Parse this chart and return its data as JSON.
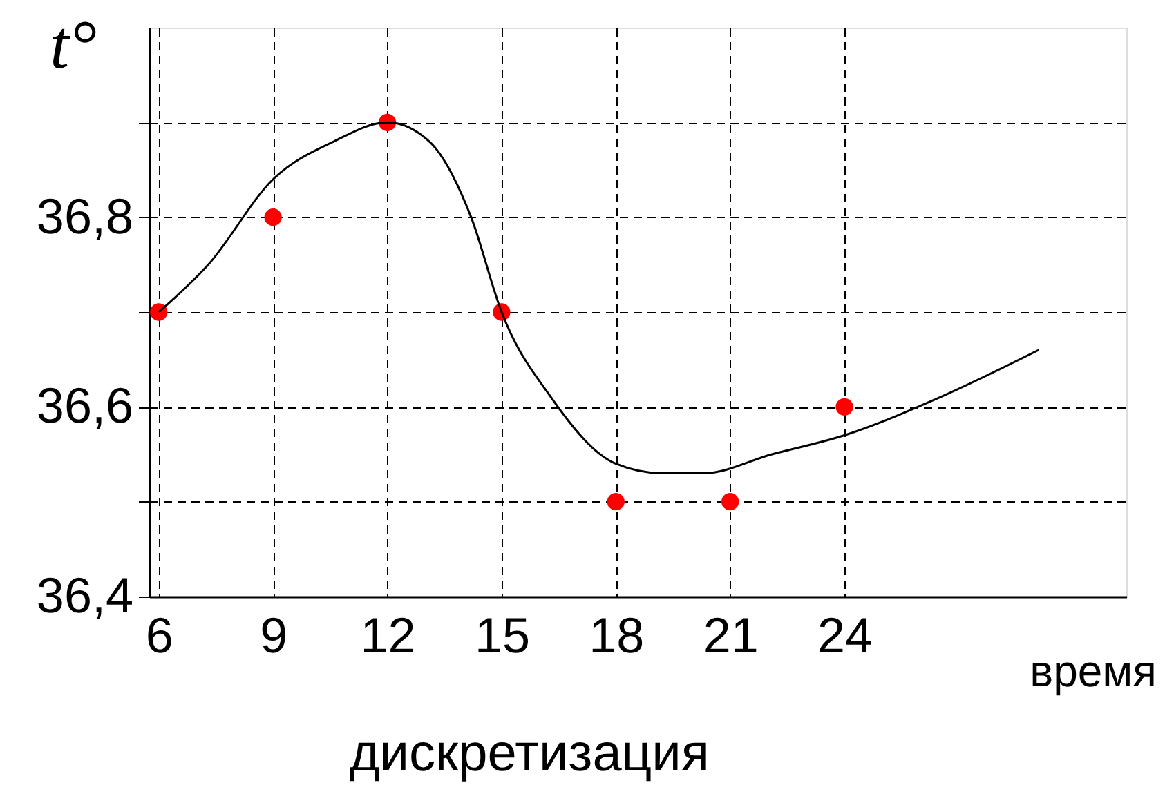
{
  "chart_data": {
    "type": "scatter",
    "xlabel": "время",
    "ylabel": "t°",
    "annotations": [
      "дискретизация"
    ],
    "x": [
      6,
      9,
      12,
      15,
      18,
      21,
      24
    ],
    "series": [
      {
        "color": "#ff0000",
        "marker": "circle",
        "values": [
          36.7,
          36.8,
          36.9,
          36.7,
          36.5,
          36.5,
          36.6
        ]
      },
      {
        "type": "line",
        "color": "#000000",
        "line_style": "solid",
        "x": [
          6,
          7.3,
          9,
          10.6,
          12,
          13.1,
          14.2,
          15,
          16.3,
          18,
          19.2,
          20.3,
          22.1,
          24,
          26.5,
          29.1
        ],
        "values": [
          36.7,
          36.75,
          36.84,
          36.88,
          36.9,
          36.88,
          36.8,
          36.7,
          36.61,
          36.54,
          36.53,
          36.53,
          36.55,
          36.57,
          36.61,
          36.66
        ]
      }
    ],
    "xlim": [
      5.75,
      31.4
    ],
    "xticks": [
      6,
      9,
      12,
      15,
      18,
      21,
      24
    ],
    "ylim": [
      36.4,
      37.0
    ],
    "yticks": [
      {
        "value": 36.4,
        "label": "36,4"
      },
      {
        "value": 36.5,
        "label": null
      },
      {
        "value": 36.6,
        "label": "36,6"
      },
      {
        "value": 36.7,
        "label": null
      },
      {
        "value": 36.8,
        "label": "36,8"
      },
      {
        "value": 36.9,
        "label": null
      }
    ],
    "grid": true
  }
}
